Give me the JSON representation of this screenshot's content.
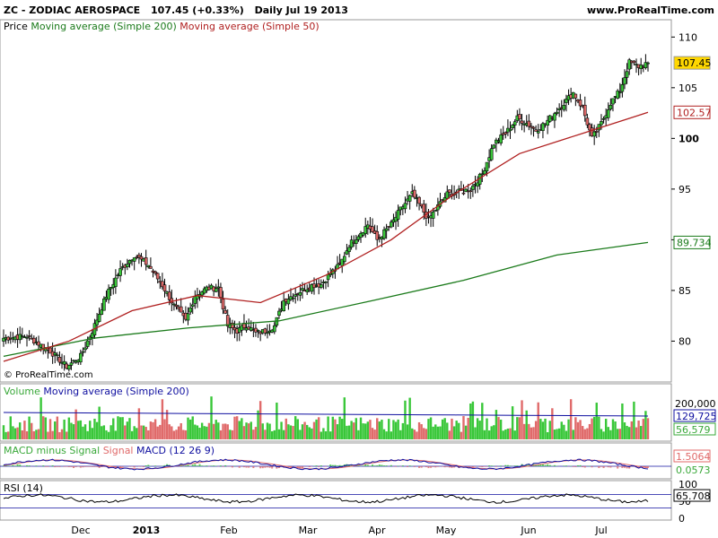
{
  "header": {
    "symbol_line": "ZC - ZODIAC AEROSPACE",
    "change": "107.45 (+0.33%)",
    "period": "Daily  Jul 19 2013",
    "website": "www.ProRealTime.com"
  },
  "legend": {
    "price": "Price",
    "ma200": "Moving average (Simple 200)",
    "ma50": "Moving average (Simple 50)",
    "volume": "Volume",
    "vol_ma": "Moving average (Simple 200)",
    "macd_hist": "MACD minus Signal",
    "macd_signal": "Signal",
    "macd": "MACD (12 26 9)",
    "rsi": "RSI (14)"
  },
  "copyright": "© ProRealTime.com",
  "colors": {
    "bull": "#39c739",
    "bear": "#e06a6a",
    "ma200": "#1a7a1a",
    "ma50": "#b02020",
    "volma": "#1010a0",
    "tag_price_bg": "#ffd700",
    "tag_ma50": "#b02020",
    "tag_ma200": "#1a7a1a"
  },
  "chart_data": [
    {
      "type": "candlestick",
      "title": "ZC - ZODIAC AEROSPACE",
      "ylim": [
        76.5,
        111
      ],
      "y_ticks": [
        80,
        85,
        90,
        95,
        100,
        105,
        110
      ],
      "x_labels": [
        "Dec",
        "2013",
        "Feb",
        "Mar",
        "Apr",
        "May",
        "Jun",
        "Jul"
      ],
      "last_price": "107.45",
      "ma50_last": "102.57",
      "ma200_last": "89.734",
      "series": [
        {
          "name": "Moving average (Simple 200)",
          "values": [
            78.5,
            80.3,
            81.3,
            82,
            84,
            86,
            88.5,
            89.734
          ]
        },
        {
          "name": "Moving average (Simple 50)",
          "values": [
            78,
            80,
            83,
            84.5,
            83.8,
            86.5,
            90,
            94.5,
            98.5,
            100.5,
            102.57
          ]
        }
      ],
      "anchors": [
        [
          0,
          80.3
        ],
        [
          10,
          80.5
        ],
        [
          20,
          79
        ],
        [
          27,
          77.5
        ],
        [
          33,
          78.5
        ],
        [
          38,
          81
        ],
        [
          44,
          84.5
        ],
        [
          50,
          87
        ],
        [
          56,
          88.5
        ],
        [
          62,
          87.5
        ],
        [
          68,
          85.5
        ],
        [
          73,
          83.5
        ],
        [
          78,
          82
        ],
        [
          82,
          84.5
        ],
        [
          87,
          85.2
        ],
        [
          92,
          85.3
        ],
        [
          96,
          81.5
        ],
        [
          100,
          81
        ],
        [
          104,
          81.6
        ],
        [
          108,
          80.8
        ],
        [
          112,
          81
        ],
        [
          116,
          81.5
        ],
        [
          120,
          84
        ],
        [
          126,
          84.8
        ],
        [
          132,
          85.5
        ],
        [
          136,
          85.6
        ],
        [
          140,
          86.7
        ],
        [
          144,
          87.5
        ],
        [
          148,
          89.5
        ],
        [
          152,
          90.5
        ],
        [
          156,
          91.5
        ],
        [
          160,
          90
        ],
        [
          166,
          91.5
        ],
        [
          170,
          93
        ],
        [
          175,
          94.5
        ],
        [
          178,
          93.5
        ],
        [
          182,
          92
        ],
        [
          186,
          93.3
        ],
        [
          190,
          94.5
        ],
        [
          195,
          94.7
        ],
        [
          200,
          95
        ],
        [
          205,
          96.5
        ],
        [
          210,
          99.5
        ],
        [
          215,
          100.5
        ],
        [
          220,
          102
        ],
        [
          224,
          101.5
        ],
        [
          228,
          100.8
        ],
        [
          232,
          101.5
        ],
        [
          236,
          102.5
        ],
        [
          240,
          103.5
        ],
        [
          244,
          104.5
        ],
        [
          248,
          103
        ],
        [
          252,
          100
        ],
        [
          256,
          101.5
        ],
        [
          260,
          103.5
        ],
        [
          264,
          104.7
        ],
        [
          268,
          107.5
        ],
        [
          272,
          107.1
        ],
        [
          276,
          107.45
        ]
      ]
    },
    {
      "type": "bar",
      "title": "Volume",
      "y_ticks": [
        200000
      ],
      "y_tick_labels": [
        "200,000"
      ],
      "ma_value": "129,725",
      "last_value": "56,579"
    },
    {
      "type": "line",
      "title": "MACD (12 26 9)",
      "macd_value": "1.5064",
      "hist_value": "0.0573"
    },
    {
      "type": "line",
      "title": "RSI (14)",
      "ylim": [
        0,
        100
      ],
      "y_ticks": [
        100,
        50,
        0
      ],
      "levels": [
        70,
        30
      ],
      "last_value": "65.708"
    }
  ]
}
